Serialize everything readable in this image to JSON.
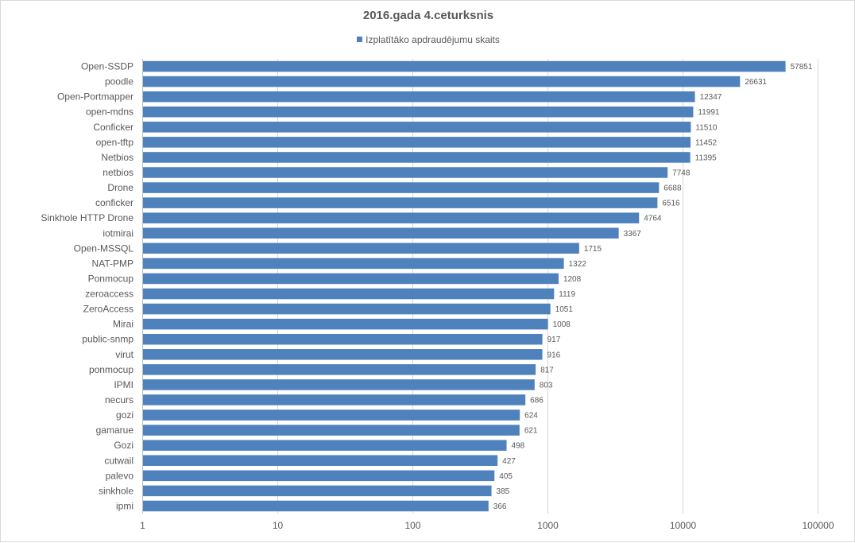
{
  "chart_data": {
    "type": "bar",
    "orientation": "horizontal",
    "title": "2016.gada 4.ceturksnis",
    "xlabel": "",
    "ylabel": "",
    "x_scale": "log",
    "xlim": [
      1,
      100000
    ],
    "x_ticks": [
      "1",
      "10",
      "100",
      "1000",
      "10000",
      "100000"
    ],
    "grid": true,
    "legend_position": "top",
    "series_color": "#4f81bd",
    "categories": [
      "Open-SSDP",
      "poodle",
      "Open-Portmapper",
      "open-mdns",
      "Conficker",
      "open-tftp",
      "Netbios",
      "netbios",
      "Drone",
      "conficker",
      "Sinkhole HTTP Drone",
      "iotmirai",
      "Open-MSSQL",
      "NAT-PMP",
      "Ponmocup",
      "zeroaccess",
      "ZeroAccess",
      "Mirai",
      "public-snmp",
      "virut",
      "ponmocup",
      "IPMI",
      "necurs",
      "gozi",
      "gamarue",
      "Gozi",
      "cutwail",
      "palevo",
      "sinkhole",
      "ipmi"
    ],
    "series": [
      {
        "name": "Izplatītāko apdraudējumu skaits",
        "values": [
          57851,
          26631,
          12347,
          11991,
          11510,
          11452,
          11395,
          7748,
          6688,
          6516,
          4764,
          3367,
          1715,
          1322,
          1208,
          1119,
          1051,
          1008,
          917,
          916,
          817,
          803,
          686,
          624,
          621,
          498,
          427,
          405,
          385,
          366
        ]
      }
    ]
  }
}
